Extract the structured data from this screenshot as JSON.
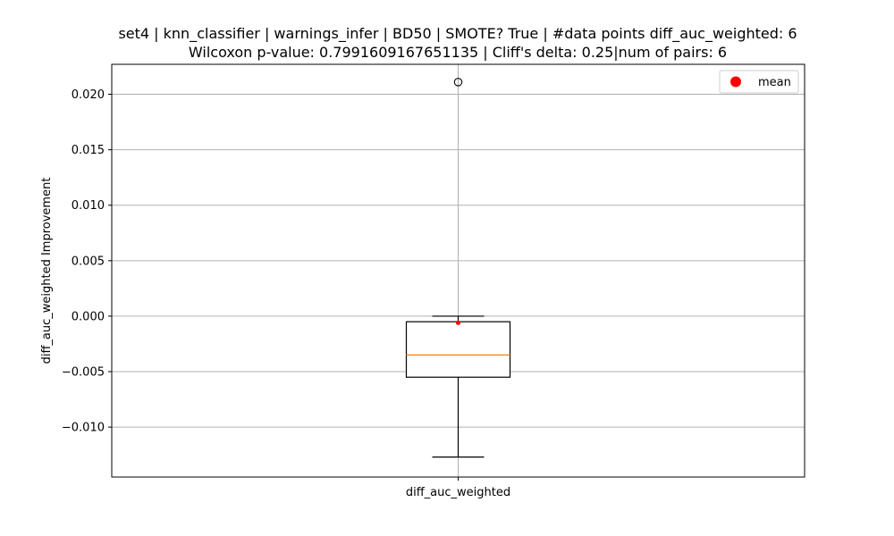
{
  "chart_data": {
    "type": "box",
    "title_line1": "set4 | knn_classifier | warnings_infer | BD50 | SMOTE? True | #data points diff_auc_weighted: 6",
    "title_line2": "Wilcoxon p-value: 0.7991609167651135 | Cliff's delta: 0.25|num of pairs: 6",
    "xlabel": "",
    "ylabel": "diff_auc_weighted Improvement",
    "categories": [
      "diff_auc_weighted"
    ],
    "ylim": [
      -0.0145,
      0.0227
    ],
    "yticks": [
      -0.01,
      -0.005,
      0.0,
      0.005,
      0.01,
      0.015,
      0.02
    ],
    "ytick_labels": [
      "−0.010",
      "−0.005",
      "0.000",
      "0.005",
      "0.010",
      "0.015",
      "0.020"
    ],
    "grid": true,
    "box": {
      "q1": -0.0055,
      "median": -0.0035,
      "q3": -0.0005,
      "whisker_low": -0.0127,
      "whisker_high": 0.0,
      "mean": -0.0006,
      "outliers": [
        0.0211
      ]
    },
    "legend": {
      "position": "top-right",
      "entries": [
        {
          "label": "mean",
          "marker": "circle",
          "color": "#ff0000"
        }
      ]
    },
    "colors": {
      "box": "#000000",
      "median": "#ff7f0e",
      "mean": "#ff0000",
      "grid": "#b0b0b0"
    }
  }
}
